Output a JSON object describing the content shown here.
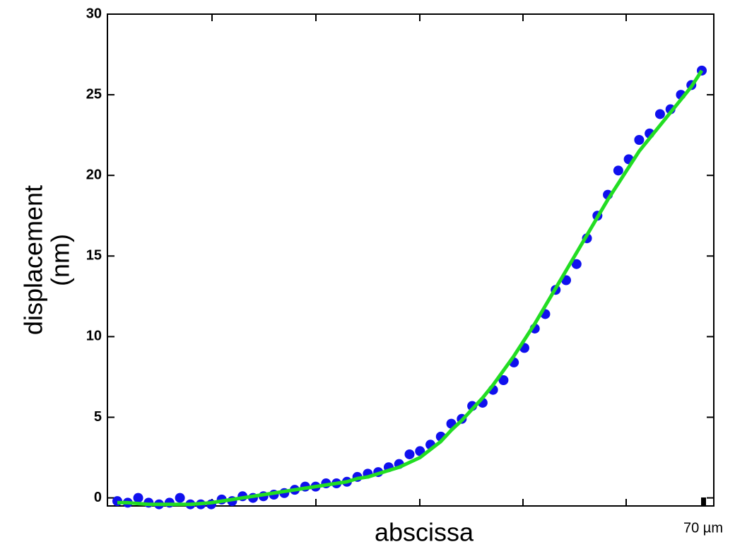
{
  "chart_data": {
    "type": "scatter",
    "x_label": "abscissa",
    "y_label": [
      "displacement",
      "(nm)"
    ],
    "annotation": "70 µm",
    "categories": [
      null,
      null,
      null,
      null,
      null,
      null,
      null,
      null,
      null,
      null,
      null,
      null,
      null,
      null,
      null,
      null,
      null,
      null,
      null,
      null,
      null,
      null,
      null,
      null,
      null,
      null,
      null,
      null,
      null,
      null,
      null,
      null,
      null,
      null,
      null,
      null,
      null,
      null,
      null,
      null,
      null,
      null,
      null,
      null,
      null,
      null,
      null,
      null,
      null,
      null,
      null,
      null,
      null,
      null,
      null,
      null,
      null
    ],
    "series": [
      {
        "type": "scatter",
        "color": "#1010ee",
        "values": [
          -0.2,
          -0.3,
          0.0,
          -0.3,
          -0.4,
          -0.3,
          0.0,
          -0.4,
          -0.4,
          -0.4,
          -0.1,
          -0.2,
          0.1,
          0.0,
          0.1,
          0.2,
          0.3,
          0.5,
          0.7,
          0.7,
          0.9,
          0.9,
          1.0,
          1.3,
          1.5,
          1.6,
          1.9,
          2.1,
          2.7,
          2.9,
          3.3,
          3.8,
          4.6,
          4.9,
          5.7,
          5.9,
          6.7,
          7.3,
          8.4,
          9.3,
          10.5,
          11.4,
          12.9,
          13.5,
          14.5,
          16.1,
          17.5,
          18.8,
          20.3,
          21.0,
          22.2,
          22.6,
          23.8,
          24.1,
          25.0,
          25.6,
          26.5
        ]
      },
      {
        "type": "line",
        "color": "#22dd22",
        "values": [
          -0.3,
          -0.3,
          -0.35,
          -0.4,
          -0.4,
          -0.4,
          -0.4,
          -0.4,
          -0.35,
          -0.3,
          -0.2,
          -0.1,
          0.0,
          0.1,
          0.2,
          0.3,
          0.4,
          0.5,
          0.6,
          0.7,
          0.8,
          0.9,
          1.0,
          1.2,
          1.3,
          1.5,
          1.7,
          1.9,
          2.2,
          2.5,
          3.0,
          3.5,
          4.2,
          4.8,
          5.5,
          6.2,
          7.0,
          7.9,
          8.8,
          9.8,
          10.8,
          11.9,
          13.0,
          14.1,
          15.2,
          16.3,
          17.4,
          18.5,
          19.5,
          20.5,
          21.5,
          22.3,
          23.1,
          23.9,
          24.7,
          25.5,
          26.5
        ]
      }
    ],
    "ylim": [
      -0.5,
      30
    ],
    "yticks": [
      0,
      5,
      10,
      15,
      20,
      25,
      30
    ]
  }
}
